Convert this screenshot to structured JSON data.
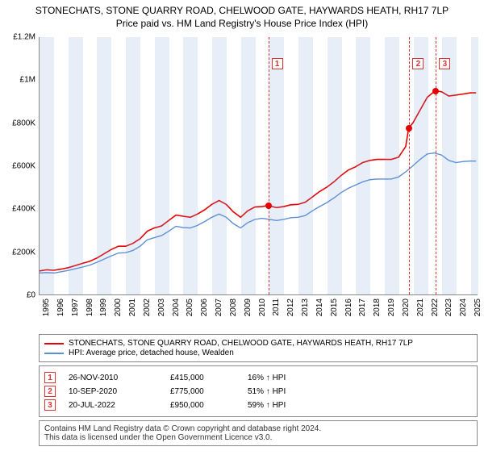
{
  "title": {
    "line1": "STONECHATS, STONE QUARRY ROAD, CHELWOOD GATE, HAYWARDS HEATH, RH17 7LP",
    "line2": "Price paid vs. HM Land Registry's House Price Index (HPI)"
  },
  "chart": {
    "type": "line",
    "background": "#ffffff",
    "xlim": [
      1995,
      2025.5
    ],
    "ylim": [
      0,
      1200000
    ],
    "y_ticks": [
      0,
      200000,
      400000,
      600000,
      800000,
      1000000,
      1200000
    ],
    "y_tick_labels": [
      "£0",
      "£200K",
      "£400K",
      "£600K",
      "£800K",
      "£1M",
      "£1.2M"
    ],
    "x_ticks": [
      1995,
      1996,
      1997,
      1998,
      1999,
      2000,
      2001,
      2002,
      2003,
      2004,
      2005,
      2006,
      2007,
      2008,
      2009,
      2010,
      2011,
      2012,
      2013,
      2014,
      2015,
      2016,
      2017,
      2018,
      2019,
      2020,
      2021,
      2022,
      2023,
      2024,
      2025
    ],
    "x_tick_labels": [
      "1995",
      "1996",
      "1997",
      "1998",
      "1999",
      "2000",
      "2001",
      "2002",
      "2003",
      "2004",
      "2005",
      "2006",
      "2007",
      "2008",
      "2009",
      "2010",
      "2011",
      "2012",
      "2013",
      "2014",
      "2015",
      "2016",
      "2017",
      "2018",
      "2019",
      "2020",
      "2021",
      "2022",
      "2023",
      "2024",
      "2025"
    ],
    "band_years": [
      1995,
      1997,
      1999,
      2001,
      2003,
      2005,
      2007,
      2009,
      2011,
      2013,
      2015,
      2017,
      2019,
      2021,
      2023,
      2025
    ],
    "series": [
      {
        "name": "STONECHATS, STONE QUARRY ROAD, CHELWOOD GATE, HAYWARDS HEATH, RH17 7LP",
        "color": "#e60000",
        "width": 1.6,
        "points": [
          [
            1995.0,
            110000
          ],
          [
            1995.5,
            115000
          ],
          [
            1996.0,
            113000
          ],
          [
            1996.5,
            118000
          ],
          [
            1997.0,
            125000
          ],
          [
            1997.5,
            135000
          ],
          [
            1998.0,
            145000
          ],
          [
            1998.5,
            155000
          ],
          [
            1999.0,
            170000
          ],
          [
            1999.5,
            190000
          ],
          [
            2000.0,
            210000
          ],
          [
            2000.5,
            225000
          ],
          [
            2001.0,
            225000
          ],
          [
            2001.5,
            238000
          ],
          [
            2002.0,
            260000
          ],
          [
            2002.5,
            295000
          ],
          [
            2003.0,
            310000
          ],
          [
            2003.5,
            320000
          ],
          [
            2004.0,
            345000
          ],
          [
            2004.5,
            370000
          ],
          [
            2005.0,
            365000
          ],
          [
            2005.5,
            360000
          ],
          [
            2006.0,
            375000
          ],
          [
            2006.5,
            395000
          ],
          [
            2007.0,
            420000
          ],
          [
            2007.5,
            438000
          ],
          [
            2008.0,
            420000
          ],
          [
            2008.5,
            385000
          ],
          [
            2009.0,
            360000
          ],
          [
            2009.5,
            390000
          ],
          [
            2010.0,
            408000
          ],
          [
            2010.5,
            410000
          ],
          [
            2010.9,
            415000
          ],
          [
            2011.5,
            405000
          ],
          [
            2012.0,
            410000
          ],
          [
            2012.5,
            418000
          ],
          [
            2013.0,
            420000
          ],
          [
            2013.5,
            430000
          ],
          [
            2014.0,
            455000
          ],
          [
            2014.5,
            480000
          ],
          [
            2015.0,
            500000
          ],
          [
            2015.5,
            525000
          ],
          [
            2016.0,
            555000
          ],
          [
            2016.5,
            580000
          ],
          [
            2017.0,
            595000
          ],
          [
            2017.5,
            615000
          ],
          [
            2018.0,
            625000
          ],
          [
            2018.5,
            630000
          ],
          [
            2019.0,
            630000
          ],
          [
            2019.5,
            630000
          ],
          [
            2020.0,
            640000
          ],
          [
            2020.5,
            690000
          ],
          [
            2020.7,
            775000
          ],
          [
            2021.0,
            800000
          ],
          [
            2021.5,
            860000
          ],
          [
            2022.0,
            920000
          ],
          [
            2022.55,
            950000
          ],
          [
            2023.0,
            945000
          ],
          [
            2023.5,
            925000
          ],
          [
            2024.0,
            930000
          ],
          [
            2024.5,
            935000
          ],
          [
            2025.0,
            940000
          ],
          [
            2025.4,
            940000
          ]
        ]
      },
      {
        "name": "HPI: Average price, detached house, Wealden",
        "color": "#5b8fd6",
        "width": 1.4,
        "points": [
          [
            1995.0,
            100000
          ],
          [
            1995.5,
            102000
          ],
          [
            1996.0,
            100000
          ],
          [
            1996.5,
            106000
          ],
          [
            1997.0,
            112000
          ],
          [
            1997.5,
            120000
          ],
          [
            1998.0,
            128000
          ],
          [
            1998.5,
            137000
          ],
          [
            1999.0,
            150000
          ],
          [
            1999.5,
            165000
          ],
          [
            2000.0,
            180000
          ],
          [
            2000.5,
            193000
          ],
          [
            2001.0,
            195000
          ],
          [
            2001.5,
            205000
          ],
          [
            2002.0,
            225000
          ],
          [
            2002.5,
            255000
          ],
          [
            2003.0,
            265000
          ],
          [
            2003.5,
            275000
          ],
          [
            2004.0,
            295000
          ],
          [
            2004.5,
            318000
          ],
          [
            2005.0,
            312000
          ],
          [
            2005.5,
            310000
          ],
          [
            2006.0,
            322000
          ],
          [
            2006.5,
            340000
          ],
          [
            2007.0,
            360000
          ],
          [
            2007.5,
            375000
          ],
          [
            2008.0,
            360000
          ],
          [
            2008.5,
            330000
          ],
          [
            2009.0,
            310000
          ],
          [
            2009.5,
            335000
          ],
          [
            2010.0,
            350000
          ],
          [
            2010.5,
            355000
          ],
          [
            2011.0,
            350000
          ],
          [
            2011.5,
            345000
          ],
          [
            2012.0,
            350000
          ],
          [
            2012.5,
            358000
          ],
          [
            2013.0,
            360000
          ],
          [
            2013.5,
            368000
          ],
          [
            2014.0,
            390000
          ],
          [
            2014.5,
            410000
          ],
          [
            2015.0,
            428000
          ],
          [
            2015.5,
            450000
          ],
          [
            2016.0,
            475000
          ],
          [
            2016.5,
            495000
          ],
          [
            2017.0,
            510000
          ],
          [
            2017.5,
            525000
          ],
          [
            2018.0,
            535000
          ],
          [
            2018.5,
            538000
          ],
          [
            2019.0,
            538000
          ],
          [
            2019.5,
            538000
          ],
          [
            2020.0,
            548000
          ],
          [
            2020.5,
            572000
          ],
          [
            2021.0,
            600000
          ],
          [
            2021.5,
            630000
          ],
          [
            2022.0,
            655000
          ],
          [
            2022.5,
            660000
          ],
          [
            2023.0,
            650000
          ],
          [
            2023.5,
            625000
          ],
          [
            2024.0,
            615000
          ],
          [
            2024.5,
            620000
          ],
          [
            2025.0,
            622000
          ],
          [
            2025.4,
            622000
          ]
        ]
      }
    ],
    "sale_markers": [
      {
        "n": "1",
        "x": 2010.9,
        "y": 415000
      },
      {
        "n": "2",
        "x": 2020.7,
        "y": 775000
      },
      {
        "n": "3",
        "x": 2022.55,
        "y": 950000
      }
    ]
  },
  "legend": {
    "items": [
      {
        "color": "#e60000",
        "label": "STONECHATS, STONE QUARRY ROAD, CHELWOOD GATE, HAYWARDS HEATH, RH17 7LP"
      },
      {
        "color": "#5b8fd6",
        "label": "HPI: Average price, detached house, Wealden"
      }
    ]
  },
  "sales": [
    {
      "n": "1",
      "date": "26-NOV-2010",
      "price": "£415,000",
      "pct": "16% ↑ HPI"
    },
    {
      "n": "2",
      "date": "10-SEP-2020",
      "price": "£775,000",
      "pct": "51% ↑ HPI"
    },
    {
      "n": "3",
      "date": "20-JUL-2022",
      "price": "£950,000",
      "pct": "59% ↑ HPI"
    }
  ],
  "footer": {
    "line1": "Contains HM Land Registry data © Crown copyright and database right 2024.",
    "line2": "This data is licensed under the Open Government Licence v3.0."
  }
}
